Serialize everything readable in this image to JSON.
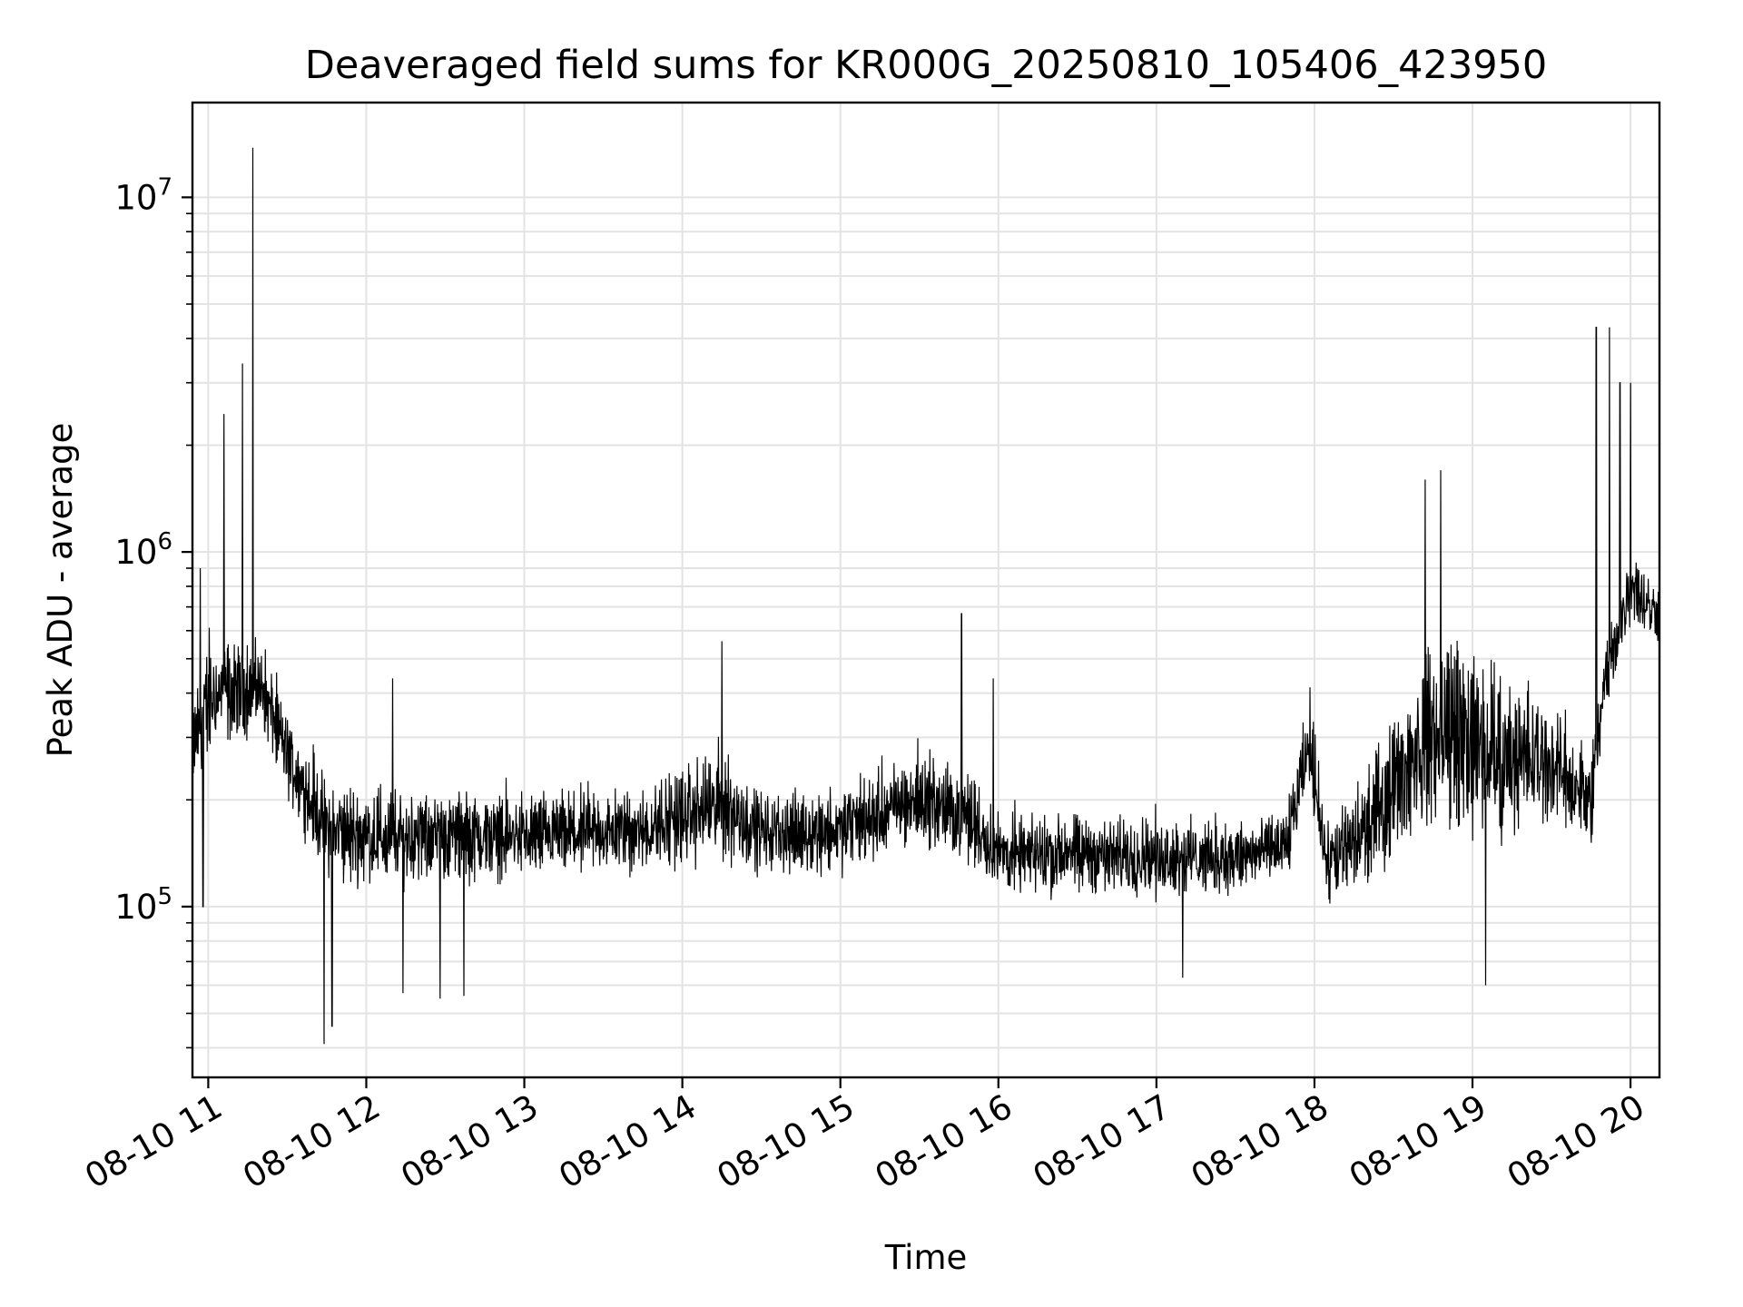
{
  "chart_data": {
    "type": "line",
    "title": "Deaveraged field sums for KR000G_20250810_105406_423950",
    "xlabel": "Time",
    "ylabel": "Peak ADU - average",
    "y_scale": "log",
    "ylim": [
      33000,
      18500000
    ],
    "xlim": [
      "2025-08-10 10:54",
      "2025-08-10 20:11"
    ],
    "grid": true,
    "line_color": "#000000",
    "grid_color": "#e3e3e3",
    "x_ticks": [
      {
        "t": "2025-08-10 11:00",
        "label": "08-10 11"
      },
      {
        "t": "2025-08-10 12:00",
        "label": "08-10 12"
      },
      {
        "t": "2025-08-10 13:00",
        "label": "08-10 13"
      },
      {
        "t": "2025-08-10 14:00",
        "label": "08-10 14"
      },
      {
        "t": "2025-08-10 15:00",
        "label": "08-10 15"
      },
      {
        "t": "2025-08-10 16:00",
        "label": "08-10 16"
      },
      {
        "t": "2025-08-10 17:00",
        "label": "08-10 17"
      },
      {
        "t": "2025-08-10 18:00",
        "label": "08-10 18"
      },
      {
        "t": "2025-08-10 19:00",
        "label": "08-10 19"
      },
      {
        "t": "2025-08-10 20:00",
        "label": "08-10 20"
      }
    ],
    "y_ticks": [
      {
        "value": 100000,
        "base": "10",
        "exp": "5"
      },
      {
        "value": 1000000,
        "base": "10",
        "exp": "6"
      },
      {
        "value": 10000000,
        "base": "10",
        "exp": "7"
      }
    ],
    "series": [
      {
        "envelope": [
          {
            "t": "2025-08-10 10:54",
            "lo": 180000,
            "hi": 420000
          },
          {
            "t": "2025-08-10 11:00",
            "lo": 240000,
            "hi": 650000
          },
          {
            "t": "2025-08-10 11:10",
            "lo": 260000,
            "hi": 620000
          },
          {
            "t": "2025-08-10 11:20",
            "lo": 300000,
            "hi": 600000
          },
          {
            "t": "2025-08-10 11:30",
            "lo": 190000,
            "hi": 380000
          },
          {
            "t": "2025-08-10 11:45",
            "lo": 110000,
            "hi": 250000
          },
          {
            "t": "2025-08-10 12:00",
            "lo": 105000,
            "hi": 240000
          },
          {
            "t": "2025-08-10 13:00",
            "lo": 110000,
            "hi": 230000
          },
          {
            "t": "2025-08-10 13:45",
            "lo": 115000,
            "hi": 240000
          },
          {
            "t": "2025-08-10 14:15",
            "lo": 120000,
            "hi": 320000
          },
          {
            "t": "2025-08-10 14:30",
            "lo": 115000,
            "hi": 230000
          },
          {
            "t": "2025-08-10 15:00",
            "lo": 115000,
            "hi": 240000
          },
          {
            "t": "2025-08-10 15:30",
            "lo": 140000,
            "hi": 300000
          },
          {
            "t": "2025-08-10 15:50",
            "lo": 120000,
            "hi": 260000
          },
          {
            "t": "2025-08-10 16:00",
            "lo": 100000,
            "hi": 200000
          },
          {
            "t": "2025-08-10 16:30",
            "lo": 100000,
            "hi": 200000
          },
          {
            "t": "2025-08-10 17:30",
            "lo": 100000,
            "hi": 190000
          },
          {
            "t": "2025-08-10 17:50",
            "lo": 110000,
            "hi": 210000
          },
          {
            "t": "2025-08-10 17:58",
            "lo": 200000,
            "hi": 430000
          },
          {
            "t": "2025-08-10 18:05",
            "lo": 90000,
            "hi": 190000
          },
          {
            "t": "2025-08-10 18:20",
            "lo": 100000,
            "hi": 280000
          },
          {
            "t": "2025-08-10 18:35",
            "lo": 140000,
            "hi": 480000
          },
          {
            "t": "2025-08-10 18:50",
            "lo": 140000,
            "hi": 800000
          },
          {
            "t": "2025-08-10 19:10",
            "lo": 130000,
            "hi": 550000
          },
          {
            "t": "2025-08-10 19:30",
            "lo": 160000,
            "hi": 420000
          },
          {
            "t": "2025-08-10 19:45",
            "lo": 130000,
            "hi": 300000
          },
          {
            "t": "2025-08-10 19:50",
            "lo": 300000,
            "hi": 600000
          },
          {
            "t": "2025-08-10 20:00",
            "lo": 580000,
            "hi": 1150000
          },
          {
            "t": "2025-08-10 20:11",
            "lo": 500000,
            "hi": 900000
          }
        ],
        "spikes": [
          {
            "t": "2025-08-10 10:57",
            "value": 900000
          },
          {
            "t": "2025-08-10 10:58",
            "value": 100000
          },
          {
            "t": "2025-08-10 11:06",
            "value": 2450000
          },
          {
            "t": "2025-08-10 11:13",
            "value": 3400000
          },
          {
            "t": "2025-08-10 11:17",
            "value": 13800000
          },
          {
            "t": "2025-08-10 11:44",
            "value": 41000
          },
          {
            "t": "2025-08-10 11:47",
            "value": 46000
          },
          {
            "t": "2025-08-10 12:10",
            "value": 440000
          },
          {
            "t": "2025-08-10 12:14",
            "value": 57000
          },
          {
            "t": "2025-08-10 12:28",
            "value": 55000
          },
          {
            "t": "2025-08-10 12:37",
            "value": 56000
          },
          {
            "t": "2025-08-10 14:15",
            "value": 560000
          },
          {
            "t": "2025-08-10 15:46",
            "value": 670000
          },
          {
            "t": "2025-08-10 15:58",
            "value": 440000
          },
          {
            "t": "2025-08-10 17:10",
            "value": 63000
          },
          {
            "t": "2025-08-10 18:48",
            "value": 1700000
          },
          {
            "t": "2025-08-10 18:42",
            "value": 1600000
          },
          {
            "t": "2025-08-10 19:05",
            "value": 60000
          },
          {
            "t": "2025-08-10 19:47",
            "value": 4300000
          },
          {
            "t": "2025-08-10 19:52",
            "value": 4300000
          },
          {
            "t": "2025-08-10 19:56",
            "value": 3000000
          },
          {
            "t": "2025-08-10 20:00",
            "value": 3000000
          }
        ]
      }
    ]
  }
}
